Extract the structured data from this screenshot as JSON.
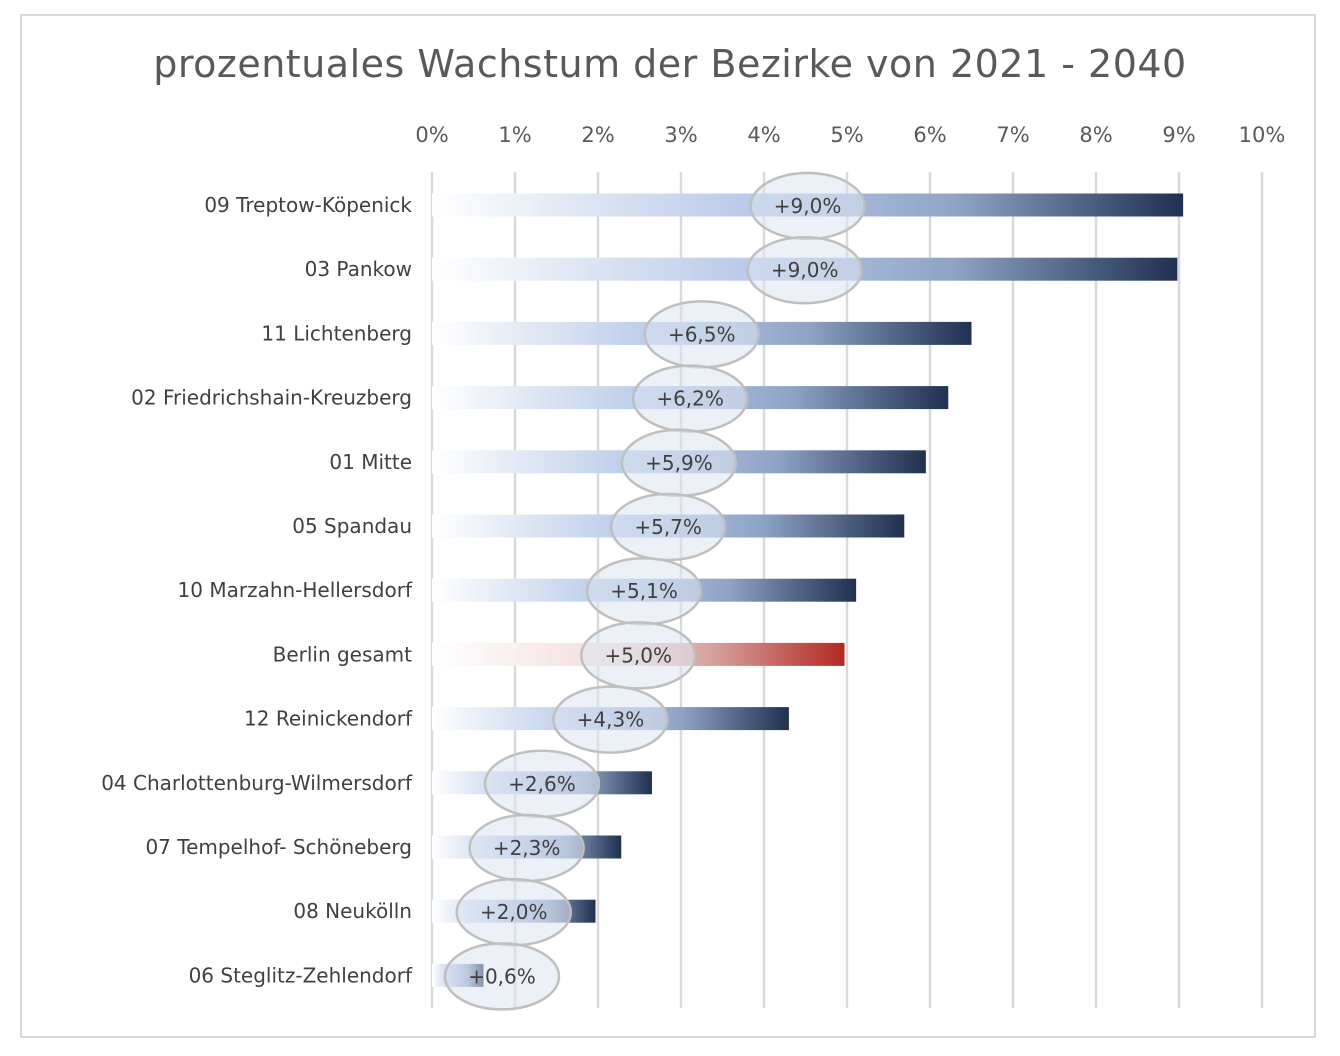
{
  "chart_data": {
    "type": "bar",
    "orientation": "horizontal",
    "title": "prozentuales Wachstum der Bezirke von 2021 - 2040",
    "xlabel": "",
    "ylabel": "",
    "xlim": [
      0,
      10
    ],
    "x_ticks": [
      "0%",
      "1%",
      "2%",
      "3%",
      "4%",
      "5%",
      "6%",
      "7%",
      "8%",
      "9%",
      "10%"
    ],
    "grid": "vertical",
    "x_axis_position": "top",
    "categories": [
      "09 Treptow-Köpenick",
      "03 Pankow",
      "11 Lichtenberg",
      "02 Friedrichshain-Kreuzberg",
      "01 Mitte",
      "05 Spandau",
      "10 Marzahn-Hellersdorf",
      "Berlin gesamt",
      "12 Reinickendorf",
      "04 Charlottenburg-Wilmersdorf",
      "07 Tempelhof- Schöneberg",
      "08 Neukölln",
      "06 Steglitz-Zehlendorf"
    ],
    "values": [
      9.05,
      8.98,
      6.5,
      6.22,
      5.95,
      5.69,
      5.11,
      4.97,
      4.3,
      2.65,
      2.28,
      1.97,
      0.62
    ],
    "data_labels": [
      "+9,0%",
      "+9,0%",
      "+6,5%",
      "+6,2%",
      "+5,9%",
      "+5,7%",
      "+5,1%",
      "+5,0%",
      "+4,3%",
      "+2,6%",
      "+2,3%",
      "+2,0%",
      "+0,6%"
    ],
    "highlight_category": "Berlin gesamt",
    "colors": {
      "bar_start": "#ffffff",
      "bar_mid": "#b4c7e7",
      "bar_end": "#1f3050",
      "highlight_mid": "#f2dcdb",
      "highlight_end": "#b22a22",
      "grid": "#d9d9d9",
      "label_bubble": "#dde5f0",
      "label_bubble_border": "#bfbfbf"
    }
  }
}
